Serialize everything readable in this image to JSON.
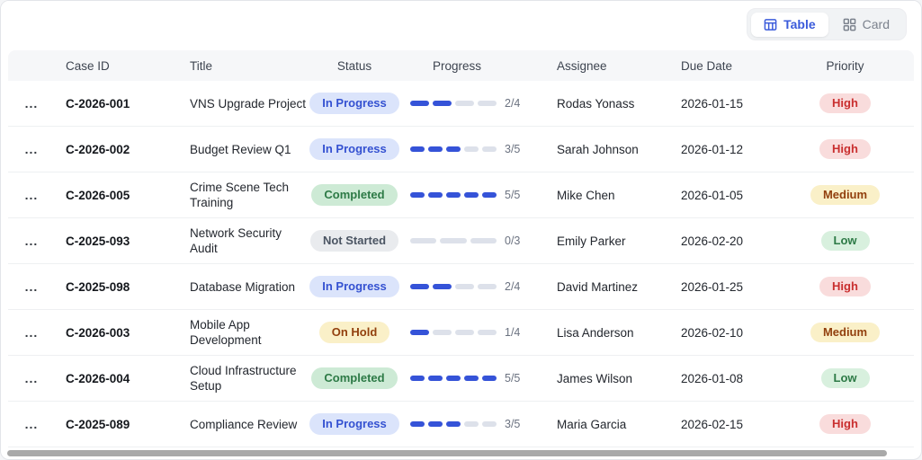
{
  "toolbar": {
    "view_toggle": [
      {
        "label": "Table",
        "icon": "table-icon",
        "active": true
      },
      {
        "label": "Card",
        "icon": "card-grid-icon",
        "active": false
      }
    ]
  },
  "table": {
    "columns": [
      "Case ID",
      "Title",
      "Status",
      "Progress",
      "Assignee",
      "Due Date",
      "Priority"
    ],
    "row_menu_label": "...",
    "rows": [
      {
        "case_id": "C-2026-001",
        "title": "VNS Upgrade Project",
        "status": "In Progress",
        "progress_done": 2,
        "progress_total": 4,
        "progress_label": "2/4",
        "assignee": "Rodas Yonass",
        "due_date": "2026-01-15",
        "priority": "High"
      },
      {
        "case_id": "C-2026-002",
        "title": "Budget Review Q1",
        "status": "In Progress",
        "progress_done": 3,
        "progress_total": 5,
        "progress_label": "3/5",
        "assignee": "Sarah Johnson",
        "due_date": "2026-01-12",
        "priority": "High"
      },
      {
        "case_id": "C-2026-005",
        "title": "Crime Scene Tech Training",
        "status": "Completed",
        "progress_done": 5,
        "progress_total": 5,
        "progress_label": "5/5",
        "assignee": "Mike Chen",
        "due_date": "2026-01-05",
        "priority": "Medium"
      },
      {
        "case_id": "C-2025-093",
        "title": "Network Security Audit",
        "status": "Not Started",
        "progress_done": 0,
        "progress_total": 3,
        "progress_label": "0/3",
        "assignee": "Emily Parker",
        "due_date": "2026-02-20",
        "priority": "Low"
      },
      {
        "case_id": "C-2025-098",
        "title": "Database Migration",
        "status": "In Progress",
        "progress_done": 2,
        "progress_total": 4,
        "progress_label": "2/4",
        "assignee": "David Martinez",
        "due_date": "2026-01-25",
        "priority": "High"
      },
      {
        "case_id": "C-2026-003",
        "title": "Mobile App Development",
        "status": "On Hold",
        "progress_done": 1,
        "progress_total": 4,
        "progress_label": "1/4",
        "assignee": "Lisa Anderson",
        "due_date": "2026-02-10",
        "priority": "Medium"
      },
      {
        "case_id": "C-2026-004",
        "title": "Cloud Infrastructure Setup",
        "status": "Completed",
        "progress_done": 5,
        "progress_total": 5,
        "progress_label": "5/5",
        "assignee": "James Wilson",
        "due_date": "2026-01-08",
        "priority": "Low"
      },
      {
        "case_id": "C-2025-089",
        "title": "Compliance Review",
        "status": "In Progress",
        "progress_done": 3,
        "progress_total": 5,
        "progress_label": "3/5",
        "assignee": "Maria Garcia",
        "due_date": "2026-02-15",
        "priority": "High"
      }
    ]
  },
  "colors": {
    "accent": "#3b5bdb",
    "progress_fill": "#3553d8",
    "progress_empty": "#dde1ea",
    "scrollbar_thumb": "#a9a9a9",
    "status": {
      "In Progress": {
        "bg": "#dbe4fb",
        "fg": "#3451d1"
      },
      "Completed": {
        "bg": "#cdead5",
        "fg": "#2d7a46"
      },
      "Not Started": {
        "bg": "#e9ebee",
        "fg": "#4b5563"
      },
      "On Hold": {
        "bg": "#faf0c8",
        "fg": "#92400e"
      }
    },
    "priority": {
      "High": {
        "bg": "#f9dcdc",
        "fg": "#c92f2f"
      },
      "Medium": {
        "bg": "#faf0c8",
        "fg": "#92400e"
      },
      "Low": {
        "bg": "#d8f0de",
        "fg": "#2d7a46"
      }
    }
  }
}
